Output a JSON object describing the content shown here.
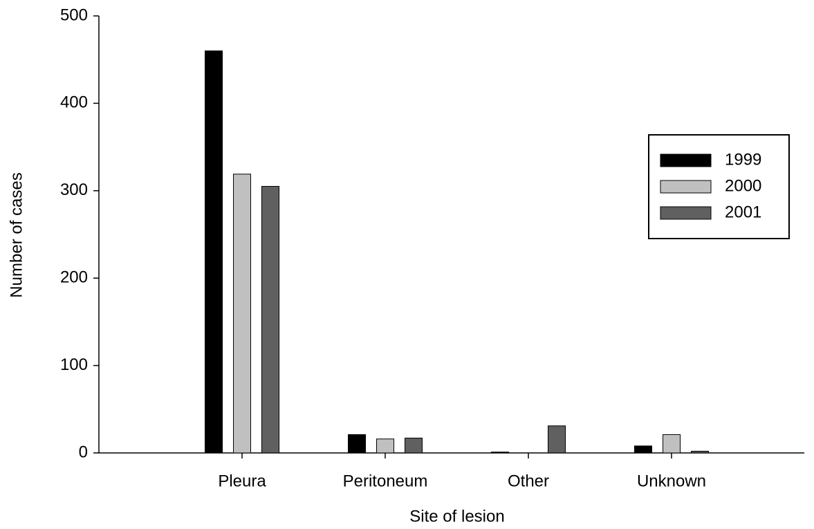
{
  "chart_data": {
    "type": "bar",
    "xlabel": "Site of lesion",
    "ylabel": "Number of cases",
    "categories": [
      "Pleura",
      "Peritoneum",
      "Other",
      "Unknown"
    ],
    "series": [
      {
        "name": "1999",
        "color": "#000000",
        "values": [
          460,
          21,
          1,
          8
        ]
      },
      {
        "name": "2000",
        "color": "#c0c0c0",
        "values": [
          319,
          16,
          0,
          21
        ]
      },
      {
        "name": "2001",
        "color": "#606060",
        "values": [
          305,
          17,
          31,
          2
        ]
      }
    ],
    "ylim": [
      0,
      500
    ],
    "yticks": [
      0,
      100,
      200,
      300,
      400,
      500
    ],
    "grid": false,
    "legend": "right"
  }
}
